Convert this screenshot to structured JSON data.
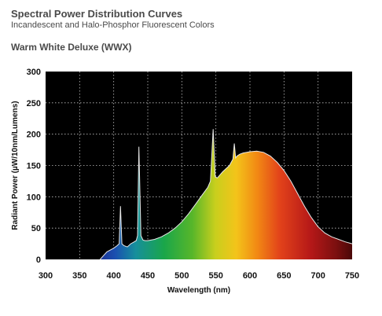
{
  "header": {
    "title": "Spectral Power Distribution Curves",
    "subtitle": "Incandescent and Halo-Phosphor Fluorescent Colors"
  },
  "chart_data": {
    "type": "area",
    "title": "Warm White Deluxe (WWX)",
    "xlabel": "Wavelength (nm)",
    "ylabel": "Radiant Power (µW/10nm/Lumens)",
    "xlim": [
      300,
      750
    ],
    "ylim": [
      0,
      300
    ],
    "xticks": [
      300,
      350,
      400,
      450,
      500,
      550,
      600,
      650,
      700,
      750
    ],
    "yticks": [
      0,
      50,
      100,
      150,
      200,
      250,
      300
    ],
    "grid": true,
    "background": "#000000",
    "grid_color": "#bfbfbf",
    "curve_color": "#e8e8e8",
    "series": [
      {
        "x": [
          380,
          390,
          400,
          405,
          408,
          410,
          412,
          415,
          420,
          425,
          430,
          433,
          435,
          437,
          440,
          443,
          446,
          450,
          460,
          470,
          480,
          490,
          500,
          510,
          520,
          530,
          538,
          542,
          546,
          549,
          552,
          556,
          560,
          570,
          575,
          577,
          579,
          581,
          585,
          590,
          600,
          610,
          620,
          630,
          640,
          650,
          660,
          670,
          680,
          690,
          700,
          710,
          720,
          730,
          740,
          750
        ],
        "values": [
          0,
          12,
          18,
          22,
          25,
          85,
          25,
          22,
          20,
          25,
          28,
          30,
          38,
          180,
          38,
          31,
          30,
          30,
          32,
          36,
          42,
          50,
          60,
          73,
          88,
          103,
          115,
          125,
          208,
          132,
          130,
          135,
          140,
          150,
          160,
          185,
          162,
          165,
          168,
          170,
          172,
          173,
          171,
          165,
          155,
          142,
          125,
          105,
          85,
          67,
          52,
          42,
          36,
          32,
          28,
          25
        ]
      }
    ]
  }
}
